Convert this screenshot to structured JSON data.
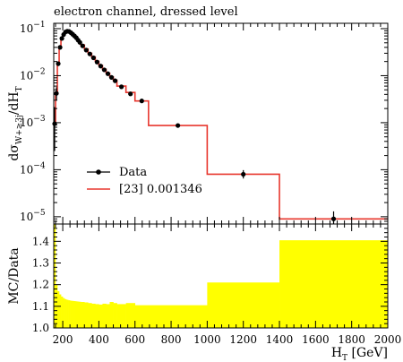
{
  "chart_data": [
    {
      "type": "line",
      "title": "electron channel, dressed level",
      "ylabel": "dσW+≥3j/dHT",
      "ylabel_parts": {
        "main": "dσ",
        "sub": "W+≥3j",
        "mid": "/dH",
        "sub2": "T"
      },
      "xlim": [
        150,
        2000
      ],
      "ylim": [
        7e-06,
        0.13
      ],
      "yscale": "log",
      "y_ticks": [
        {
          "value": 1e-05,
          "label": "10",
          "exp": "−5"
        },
        {
          "value": 0.0001,
          "label": "10",
          "exp": "−4"
        },
        {
          "value": 0.001,
          "label": "10",
          "exp": "−3"
        },
        {
          "value": 0.01,
          "label": "10",
          "exp": "−2"
        },
        {
          "value": 0.1,
          "label": "10",
          "exp": "−1"
        }
      ],
      "legend": {
        "placement": "center-left",
        "entries": [
          "Data",
          "[23] 0.001346"
        ]
      },
      "series": [
        {
          "name": "Data",
          "style": "markers",
          "color": "#000000",
          "x": [
            155,
            165,
            175,
            185,
            195,
            205,
            215,
            225,
            235,
            245,
            255,
            265,
            275,
            285,
            295,
            310,
            330,
            350,
            370,
            390,
            410,
            430,
            450,
            470,
            490,
            525,
            575,
            637.5,
            837.5,
            1200,
            1700
          ],
          "y": [
            0.00095,
            0.0042,
            0.018,
            0.04,
            0.062,
            0.075,
            0.085,
            0.088,
            0.087,
            0.082,
            0.076,
            0.07,
            0.064,
            0.057,
            0.051,
            0.043,
            0.035,
            0.029,
            0.024,
            0.0195,
            0.016,
            0.0133,
            0.011,
            0.0092,
            0.0078,
            0.0058,
            0.0041,
            0.0029,
            0.00087,
            8e-05,
            9e-06
          ],
          "yerr_low": [
            0.0007,
            0.0012,
            0.002,
            0.002,
            0.002,
            0.002,
            0.002,
            0.002,
            0.002,
            0.002,
            0.002,
            0.0015,
            0.0015,
            0.0012,
            0.001,
            0.0009,
            0.0008,
            0.0007,
            0.0006,
            0.0005,
            0.0004,
            0.0003,
            0.0003,
            0.0003,
            0.0003,
            0.0002,
            0.0002,
            0.00015,
            5e-05,
            1.5e-05,
            3.5e-06
          ],
          "yerr_high": [
            0.0012,
            0.0015,
            0.002,
            0.002,
            0.002,
            0.002,
            0.002,
            0.002,
            0.002,
            0.002,
            0.002,
            0.0015,
            0.0015,
            0.0012,
            0.001,
            0.0009,
            0.0008,
            0.0007,
            0.0006,
            0.0005,
            0.0004,
            0.0003,
            0.0003,
            0.0003,
            0.0003,
            0.0002,
            0.0002,
            0.00015,
            5e-05,
            1.8e-05,
            4e-06
          ]
        },
        {
          "name": "[23] 0.001346",
          "style": "step",
          "color": "#e8372e",
          "bin_edges": [
            150,
            160,
            170,
            180,
            190,
            200,
            210,
            220,
            230,
            240,
            250,
            260,
            270,
            280,
            290,
            300,
            320,
            340,
            360,
            380,
            400,
            420,
            440,
            460,
            480,
            500,
            550,
            600,
            675,
            1000,
            1400,
            2000
          ],
          "values": [
            0.001,
            0.0045,
            0.019,
            0.042,
            0.064,
            0.078,
            0.088,
            0.091,
            0.09,
            0.085,
            0.079,
            0.073,
            0.066,
            0.059,
            0.053,
            0.045,
            0.037,
            0.03,
            0.025,
            0.0202,
            0.0165,
            0.0137,
            0.0113,
            0.0094,
            0.008,
            0.006,
            0.0044,
            0.0029,
            0.00087,
            8e-05,
            9e-06
          ]
        }
      ]
    },
    {
      "type": "area",
      "ylabel": "MC/Data",
      "xlabel": "HT [GeV]",
      "xlabel_parts": {
        "main": "H",
        "sub": "T",
        "rest": " [GeV]"
      },
      "xlim": [
        150,
        2000
      ],
      "ylim": [
        1.0,
        1.48
      ],
      "x_ticks": [
        200,
        400,
        600,
        800,
        1000,
        1200,
        1400,
        1600,
        1800,
        2000
      ],
      "y_ticks": [
        "1.0",
        "1.1",
        "1.2",
        "1.3",
        "1.4"
      ],
      "series": [
        {
          "name": "uncertainty band",
          "color": "#ffff00",
          "bin_edges": [
            150,
            160,
            170,
            180,
            190,
            200,
            210,
            220,
            230,
            240,
            250,
            260,
            270,
            280,
            290,
            300,
            320,
            340,
            360,
            380,
            400,
            420,
            440,
            460,
            480,
            500,
            550,
            600,
            675,
            1000,
            1400,
            2000
          ],
          "upper": [
            1.48,
            1.2,
            1.17,
            1.155,
            1.145,
            1.138,
            1.133,
            1.13,
            1.128,
            1.126,
            1.125,
            1.124,
            1.123,
            1.122,
            1.121,
            1.12,
            1.118,
            1.115,
            1.112,
            1.11,
            1.108,
            1.112,
            1.11,
            1.12,
            1.115,
            1.11,
            1.115,
            1.105,
            1.105,
            1.21,
            1.405
          ],
          "lower": [
            1.0,
            1.0,
            1.0,
            1.0,
            1.0,
            1.0,
            1.0,
            1.0,
            1.0,
            1.0,
            1.0,
            1.0,
            1.0,
            1.0,
            1.0,
            1.0,
            1.0,
            1.0,
            1.0,
            1.0,
            1.0,
            1.0,
            1.0,
            1.0,
            1.0,
            1.0,
            1.0,
            1.0,
            1.0,
            1.0,
            1.0
          ]
        }
      ]
    }
  ]
}
